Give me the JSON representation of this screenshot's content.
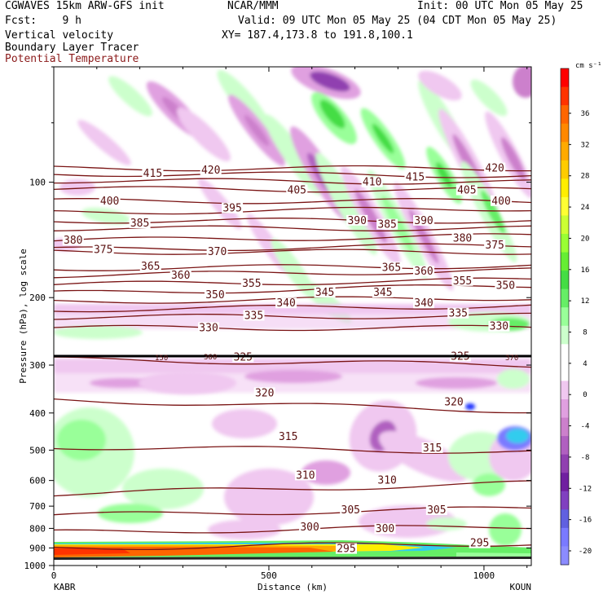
{
  "header": {
    "model": "CGWAVES 15km ARW-GFS init",
    "org": "NCAR/MMM",
    "init": "Init: 00 UTC Mon 05 May 25",
    "fcst": "Fcst:    9 h",
    "valid": "Valid: 09 UTC Mon 05 May 25 (04 CDT Mon 05 May 25)",
    "line3_left": "Vertical velocity",
    "line3_right": "XY= 187.4,173.8 to 191.8,100.1",
    "line4": "Boundary Layer Tracer",
    "line5": "Potential Temperature"
  },
  "axes": {
    "ylabel": "Pressure (hPa), log scale",
    "xlabel": "Distance (km)",
    "left_station": "KABR",
    "right_station": "KOUN",
    "x_ticks": [
      "0",
      "500",
      "1000"
    ],
    "y_ticks": [
      "100",
      "200",
      "300",
      "400",
      "500",
      "600",
      "700",
      "800",
      "900",
      "1000"
    ]
  },
  "colorbar": {
    "units": "cm s⁻¹",
    "labels": [
      "36",
      "32",
      "28",
      "24",
      "20",
      "16",
      "12",
      "8",
      "4",
      "0",
      "-4",
      "-8",
      "-12",
      "-16",
      "-20"
    ],
    "colors": [
      "#ff0000",
      "#ff3300",
      "#ff6600",
      "#ff8800",
      "#ffaa00",
      "#ffcc00",
      "#ffee00",
      "#ffff33",
      "#ccff33",
      "#99ff33",
      "#66ee33",
      "#44dd44",
      "#66ee66",
      "#99ff99",
      "#ccffcc",
      "#ffffff",
      "#ffffff",
      "#f0c8f0",
      "#e0a0e0",
      "#cc80cc",
      "#b060c0",
      "#9040b0",
      "#7020a0",
      "#8040c0",
      "#6060e0",
      "#7a7aff",
      "#8b8bff"
    ]
  },
  "chart_data": {
    "type": "cross-section",
    "x_range_km": [
      0,
      1110
    ],
    "y_range_hPa": [
      1000,
      50
    ],
    "y_scale": "log",
    "fields": [
      "Vertical velocity (shaded)",
      "Boundary Layer Tracer",
      "Potential Temperature (contours)"
    ],
    "theta_labels": [
      {
        "v": "415",
        "km": 230,
        "p": 95
      },
      {
        "v": "420",
        "km": 365,
        "p": 93
      },
      {
        "v": "400",
        "km": 130,
        "p": 112
      },
      {
        "v": "395",
        "km": 415,
        "p": 117
      },
      {
        "v": "405",
        "km": 565,
        "p": 105
      },
      {
        "v": "410",
        "km": 740,
        "p": 100
      },
      {
        "v": "415",
        "km": 840,
        "p": 97
      },
      {
        "v": "420",
        "km": 1025,
        "p": 92
      },
      {
        "v": "405",
        "km": 960,
        "p": 105
      },
      {
        "v": "400",
        "km": 1040,
        "p": 112
      },
      {
        "v": "385",
        "km": 200,
        "p": 128
      },
      {
        "v": "390",
        "km": 705,
        "p": 126
      },
      {
        "v": "385",
        "km": 775,
        "p": 129
      },
      {
        "v": "390",
        "km": 860,
        "p": 126
      },
      {
        "v": "380",
        "km": 950,
        "p": 140
      },
      {
        "v": "380",
        "km": 45,
        "p": 142
      },
      {
        "v": "375",
        "km": 115,
        "p": 150
      },
      {
        "v": "370",
        "km": 380,
        "p": 152
      },
      {
        "v": "375",
        "km": 1025,
        "p": 146
      },
      {
        "v": "365",
        "km": 225,
        "p": 166
      },
      {
        "v": "360",
        "km": 295,
        "p": 175
      },
      {
        "v": "365",
        "km": 785,
        "p": 167
      },
      {
        "v": "360",
        "km": 860,
        "p": 171
      },
      {
        "v": "355",
        "km": 460,
        "p": 184
      },
      {
        "v": "355",
        "km": 950,
        "p": 181
      },
      {
        "v": "350",
        "km": 1050,
        "p": 186
      },
      {
        "v": "350",
        "km": 375,
        "p": 197
      },
      {
        "v": "345",
        "km": 630,
        "p": 194
      },
      {
        "v": "345",
        "km": 765,
        "p": 194
      },
      {
        "v": "340",
        "km": 540,
        "p": 207
      },
      {
        "v": "340",
        "km": 860,
        "p": 207
      },
      {
        "v": "335",
        "km": 465,
        "p": 223
      },
      {
        "v": "335",
        "km": 940,
        "p": 220
      },
      {
        "v": "330",
        "km": 360,
        "p": 240
      },
      {
        "v": "330",
        "km": 1035,
        "p": 238
      },
      {
        "v": "325",
        "km": 440,
        "p": 286
      },
      {
        "v": "325",
        "km": 945,
        "p": 285
      },
      {
        "v": "320",
        "km": 490,
        "p": 355
      },
      {
        "v": "320",
        "km": 930,
        "p": 375
      },
      {
        "v": "315",
        "km": 545,
        "p": 462
      },
      {
        "v": "315",
        "km": 880,
        "p": 494
      },
      {
        "v": "310",
        "km": 585,
        "p": 582
      },
      {
        "v": "310",
        "km": 775,
        "p": 600
      },
      {
        "v": "305",
        "km": 690,
        "p": 717
      },
      {
        "v": "305",
        "km": 890,
        "p": 717
      },
      {
        "v": "300",
        "km": 595,
        "p": 794
      },
      {
        "v": "300",
        "km": 770,
        "p": 803
      },
      {
        "v": "295",
        "km": 680,
        "p": 905
      },
      {
        "v": "295",
        "km": 990,
        "p": 875
      }
    ]
  }
}
